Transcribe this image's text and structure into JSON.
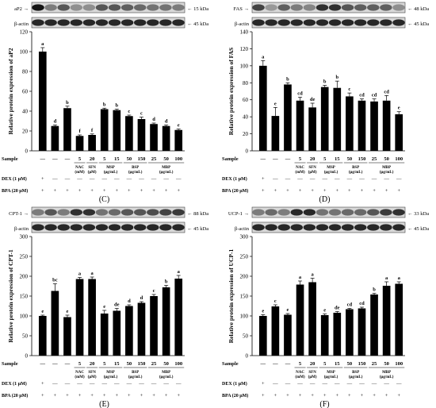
{
  "chart_data": [
    {
      "type": "bar",
      "panel": "(C)",
      "protein": "aP2",
      "kda": "15 kDa",
      "actin_label": "β-actin",
      "actin_kda": "45 kDa",
      "ylabel": "Relative protein expression of  aP2",
      "ylim": [
        0,
        120
      ],
      "yticks": [
        0,
        20,
        40,
        60,
        80,
        100,
        120
      ],
      "values": [
        100,
        25,
        43,
        15,
        16,
        42,
        41,
        35,
        32,
        27,
        25,
        21
      ],
      "errors": [
        4,
        1,
        2,
        1,
        1,
        1,
        1,
        1,
        2,
        1,
        1,
        1
      ],
      "letters": [
        "a",
        "d",
        "b",
        "f",
        "f",
        "b",
        "b",
        "c",
        "c",
        "d",
        "d",
        "e"
      ]
    },
    {
      "type": "bar",
      "panel": "(D)",
      "protein": "FAS",
      "kda": "48 kDa",
      "actin_label": "β-actin",
      "actin_kda": "45 kDa",
      "ylabel": "Relative protein expression of FAS",
      "ylim": [
        0,
        140
      ],
      "yticks": [
        0,
        20,
        40,
        60,
        80,
        100,
        120,
        140
      ],
      "values": [
        100,
        41,
        78,
        59,
        51,
        75,
        74,
        64,
        59,
        58,
        59,
        43
      ],
      "errors": [
        6,
        10,
        2,
        4,
        5,
        2,
        8,
        4,
        2,
        3,
        6,
        3
      ],
      "letters": [
        "a",
        "e",
        "b",
        "cd",
        "de",
        "b",
        "b",
        "c",
        "cd",
        "cd",
        "cd",
        "e"
      ]
    },
    {
      "type": "bar",
      "panel": "(E)",
      "protein": "CPT-1",
      "kda": "88 kDa",
      "actin_label": "β-actin",
      "actin_kda": "45 kDa",
      "ylabel": "Relative protein expression of CPT-1",
      "ylim": [
        0,
        300
      ],
      "yticks": [
        0,
        50,
        100,
        150,
        200,
        250,
        300
      ],
      "values": [
        100,
        163,
        97,
        193,
        193,
        106,
        113,
        125,
        133,
        150,
        172,
        194
      ],
      "errors": [
        2,
        18,
        5,
        4,
        5,
        8,
        6,
        3,
        3,
        4,
        5,
        8
      ],
      "letters": [
        "e",
        "bc",
        "e",
        "a",
        "a",
        "e",
        "de",
        "d",
        "d",
        "c",
        "b",
        "a"
      ]
    },
    {
      "type": "bar",
      "panel": "(F)",
      "protein": "UCP-1",
      "kda": "33 kDa",
      "actin_label": "β-actin",
      "actin_kda": "45 kDa",
      "ylabel": "Relative protein expression of UCP-1",
      "ylim": [
        0,
        300
      ],
      "yticks": [
        0,
        50,
        100,
        150,
        200,
        250,
        300
      ],
      "values": [
        100,
        124,
        103,
        179,
        185,
        102,
        108,
        117,
        119,
        154,
        176,
        181
      ],
      "errors": [
        3,
        4,
        3,
        9,
        10,
        3,
        3,
        2,
        3,
        3,
        10,
        5
      ],
      "letters": [
        "e",
        "c",
        "e",
        "a",
        "a",
        "e",
        "de",
        "cd",
        "cd",
        "b",
        "a",
        "a"
      ]
    }
  ],
  "table": {
    "sample_label": "Sample",
    "dex_label": "DEX (1 μM)",
    "bpa_label": "BPA (20 μM)",
    "dash": "—",
    "sample_values": [
      "—",
      "—",
      "—",
      "5",
      "20",
      "5",
      "15",
      "50",
      "150",
      "25",
      "50",
      "100"
    ],
    "dex_row": [
      "+",
      "—",
      "—",
      "—",
      "—",
      "—",
      "—",
      "—",
      "—",
      "—",
      "—",
      "—"
    ],
    "bpa_row": [
      "+",
      "+",
      "+",
      "+",
      "+",
      "+",
      "+",
      "+",
      "+",
      "+",
      "+",
      "+"
    ],
    "groups": [
      {
        "start": 3,
        "end": 3,
        "line1": "NAC",
        "line2": "(mM)"
      },
      {
        "start": 4,
        "end": 4,
        "line1": "SFN",
        "line2": "(μM)"
      },
      {
        "start": 5,
        "end": 6,
        "line1": "MSP",
        "line2": "(μg/mL)"
      },
      {
        "start": 7,
        "end": 8,
        "line1": "BSP",
        "line2": "(μg/mL)"
      },
      {
        "start": 9,
        "end": 11,
        "line1": "MBP",
        "line2": "(μg/mL)"
      }
    ]
  }
}
